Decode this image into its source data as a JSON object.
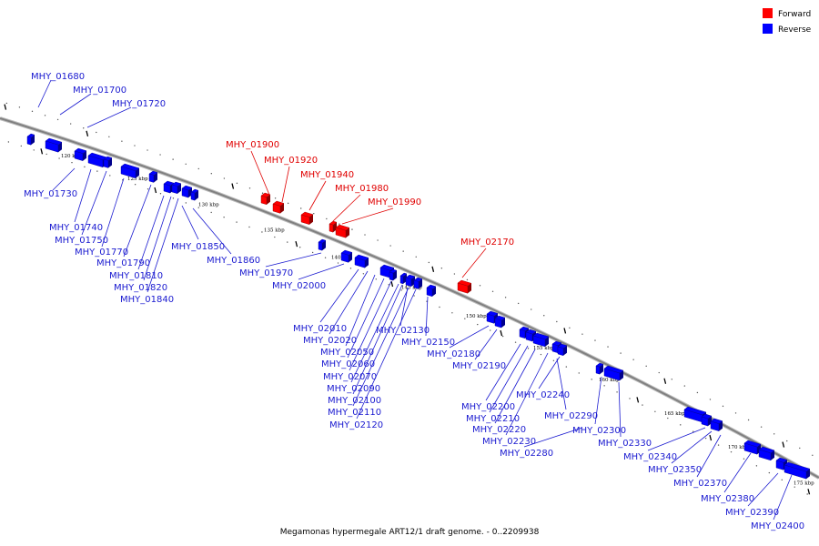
{
  "caption": "Megamonas hypermegale ART12/1 draft genome. - 0..2209938",
  "legend": [
    {
      "label": "Forward",
      "color": "#ff0000"
    },
    {
      "label": "Reverse",
      "color": "#0000ff"
    }
  ],
  "colors": {
    "forward": "#ff0000",
    "reverse": "#0000ff",
    "forward_label": "#e00000",
    "reverse_label": "#1a1ad0",
    "backbone": "#808080"
  },
  "ticks": [
    "120 kbp",
    "125 kbp",
    "130 kbp",
    "135 kbp",
    "140 kbp",
    "145 kbp",
    "150 kbp",
    "155 kbp",
    "160 kbp",
    "165 kbp",
    "170 kbp",
    "175 kbp"
  ],
  "forward_labels": [
    "MHY_01900",
    "MHY_01920",
    "MHY_01940",
    "MHY_01980",
    "MHY_01990",
    "MHY_02170"
  ],
  "reverse_labels": [
    "MHY_01680",
    "MHY_01700",
    "MHY_01720",
    "MHY_01730",
    "MHY_01740",
    "MHY_01750",
    "MHY_01770",
    "MHY_01790",
    "MHY_01810",
    "MHY_01820",
    "MHY_01840",
    "MHY_01850",
    "MHY_01860",
    "MHY_01970",
    "MHY_02000",
    "MHY_02010",
    "MHY_02020",
    "MHY_02050",
    "MHY_02060",
    "MHY_02070",
    "MHY_02090",
    "MHY_02100",
    "MHY_02110",
    "MHY_02120",
    "MHY_02130",
    "MHY_02150",
    "MHY_02180",
    "MHY_02190",
    "MHY_02200",
    "MHY_02210",
    "MHY_02220",
    "MHY_02230",
    "MHY_02240",
    "MHY_02280",
    "MHY_02290",
    "MHY_02300",
    "MHY_02330",
    "MHY_02340",
    "MHY_02350",
    "MHY_02370",
    "MHY_02380",
    "MHY_02390",
    "MHY_02400"
  ]
}
